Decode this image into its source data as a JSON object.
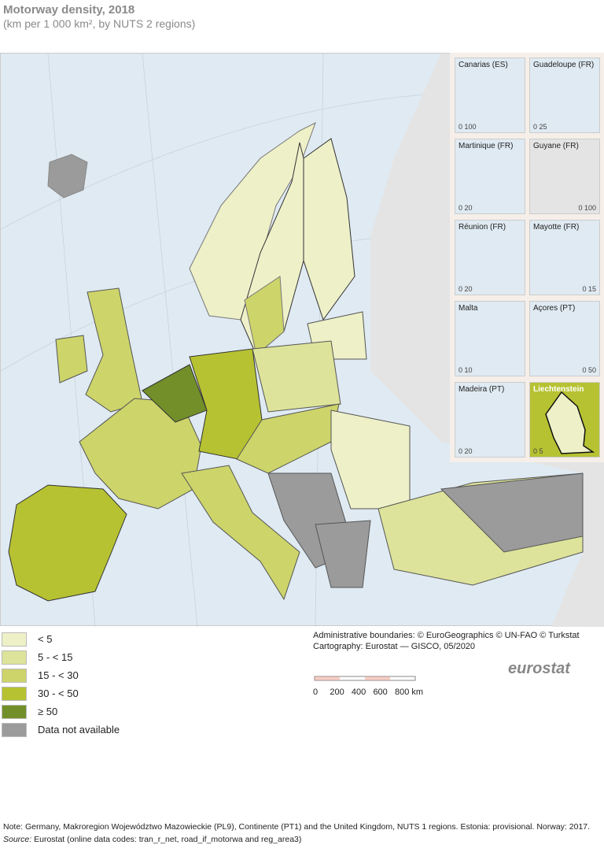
{
  "header": {
    "title": "Motorway density, 2018",
    "subtitle": "(km per 1 000 km², by NUTS 2 regions)"
  },
  "colors": {
    "sea": "#dfeaf2",
    "non_eu_land": "#e4e4e4",
    "lt5": "#eef0c8",
    "c5_15": "#dde39a",
    "c15_30": "#cdd46a",
    "c30_50": "#b7c232",
    "ge50": "#728f2a",
    "na": "#9b9b9b"
  },
  "legend": [
    {
      "label": "< 5",
      "color": "#eef0c8"
    },
    {
      "label": "5 - < 15",
      "color": "#dde39a"
    },
    {
      "label": "15 - < 30",
      "color": "#cdd46a"
    },
    {
      "label": "30 - < 50",
      "color": "#b7c232"
    },
    {
      "label": "≥ 50",
      "color": "#728f2a"
    },
    {
      "label": "Data not available",
      "color": "#9b9b9b"
    }
  ],
  "insets": [
    {
      "name": "Canarias (ES)",
      "scale": "0 100"
    },
    {
      "name": "Guadeloupe (FR)",
      "scale": "0 25"
    },
    {
      "name": "Martinique (FR)",
      "scale": "0 20"
    },
    {
      "name": "Guyane (FR)",
      "scale": "0 100"
    },
    {
      "name": "Réunion (FR)",
      "scale": "0 20"
    },
    {
      "name": "Mayotte (FR)",
      "scale": "0 15"
    },
    {
      "name": "Malta",
      "scale": "0 10"
    },
    {
      "name": "Açores (PT)",
      "scale": "0 50"
    },
    {
      "name": "Madeira (PT)",
      "scale": "0 20"
    },
    {
      "name": "Liechtenstein",
      "scale": "0 5"
    }
  ],
  "credits": {
    "line1": "Administrative boundaries: © EuroGeographics © UN-FAO © Turkstat",
    "line2": "Cartography: Eurostat — GISCO, 05/2020"
  },
  "scalebar": {
    "labels": "0     200   400   600   800 km"
  },
  "logo": "eurostat",
  "footer": {
    "note": "Note: Germany, Makroregion Województwo Mazowieckie (PL9), Continente (PT1) and the United Kingdom, NUTS 1 regions. Estonia: provisional. Norway: 2017.",
    "source_label": "Source:",
    "source": " Eurostat (online data codes: tran_r_net, road_if_motorwa and reg_area3)"
  }
}
